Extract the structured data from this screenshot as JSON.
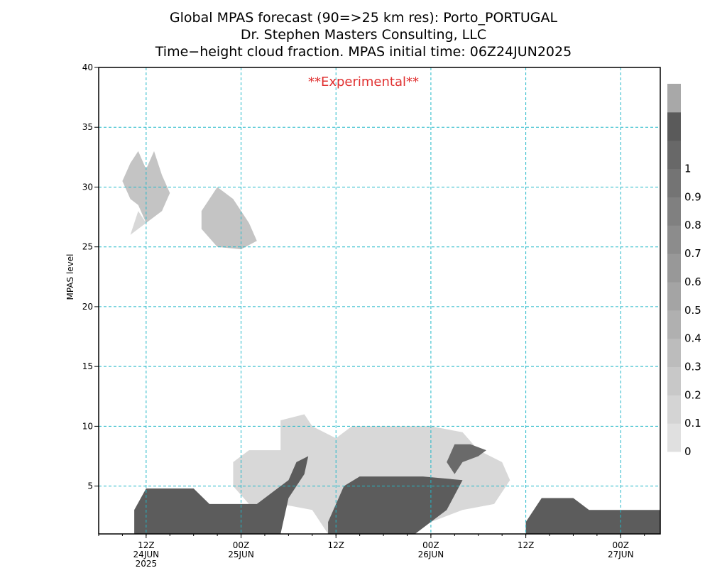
{
  "title_lines": [
    "Global MPAS forecast (90=>25 km res): Porto_PORTUGAL",
    "Dr. Stephen Masters Consulting, LLC",
    "Time−height cloud fraction.    MPAS initial time: 06Z24JUN2025"
  ],
  "watermark": "**Experimental**",
  "colors": {
    "grid": "#22b8c8",
    "watermark": "#e03030",
    "frame": "#000000"
  },
  "chart_data": {
    "type": "heatmap",
    "ylabel": "MPAS level",
    "ylim": [
      1,
      40
    ],
    "yticks": [
      5,
      10,
      15,
      20,
      25,
      30,
      35,
      40
    ],
    "x_range_hours_note": "forecast hours from 06Z24JUN2025",
    "xlim": [
      0,
      71
    ],
    "xticks": [
      {
        "hour": 6,
        "label": "12Z",
        "sub": [
          "24JUN",
          "2025"
        ]
      },
      {
        "hour": 18,
        "label": "00Z",
        "sub": [
          "25JUN"
        ]
      },
      {
        "hour": 30,
        "label": "12Z",
        "sub": []
      },
      {
        "hour": 42,
        "label": "00Z",
        "sub": [
          "26JUN"
        ]
      },
      {
        "hour": 54,
        "label": "12Z",
        "sub": []
      },
      {
        "hour": 66,
        "label": "00Z",
        "sub": [
          "27JUN"
        ]
      }
    ],
    "colorbar": {
      "labels": [
        "0",
        "0.1",
        "0.2",
        "0.3",
        "0.4",
        "0.5",
        "0.6",
        "0.7",
        "0.8",
        "0.9",
        "1"
      ],
      "colors": [
        "#e0e0e0",
        "#d4d4d4",
        "#c8c8c8",
        "#bcbcbc",
        "#b0b0b0",
        "#a4a4a4",
        "#989898",
        "#8c8c8c",
        "#808080",
        "#747474",
        "#686868",
        "#5a5a5a",
        "#a8a8a8"
      ]
    },
    "regions": [
      {
        "name": "upper cloud early",
        "level": "0.1-0.6",
        "poly": [
          [
            3,
            30.5
          ],
          [
            4,
            32
          ],
          [
            5,
            33
          ],
          [
            6,
            31.5
          ],
          [
            7,
            33
          ],
          [
            8,
            31
          ],
          [
            9,
            29.5
          ],
          [
            8,
            28
          ],
          [
            6,
            27
          ],
          [
            5,
            28.5
          ],
          [
            4,
            29
          ]
        ]
      },
      {
        "name": "upper cloud 25JUN",
        "level": "0.1-0.6",
        "poly": [
          [
            13,
            28
          ],
          [
            15,
            30
          ],
          [
            17,
            29
          ],
          [
            19,
            27
          ],
          [
            20,
            25.5
          ],
          [
            18,
            24.8
          ],
          [
            15,
            25
          ],
          [
            13,
            26.5
          ]
        ]
      },
      {
        "name": "small patch",
        "level": "0.1",
        "poly": [
          [
            4,
            26
          ],
          [
            5,
            28
          ],
          [
            6,
            27
          ]
        ]
      },
      {
        "name": "low cloud day 1",
        "level": "0.9-1",
        "poly": [
          [
            4.5,
            1
          ],
          [
            4.5,
            3
          ],
          [
            6,
            4.8
          ],
          [
            12,
            4.8
          ],
          [
            14,
            3.5
          ],
          [
            20,
            3.5
          ],
          [
            22,
            4.5
          ],
          [
            24,
            5.5
          ],
          [
            25,
            7
          ],
          [
            26.5,
            7.5
          ],
          [
            26,
            6
          ],
          [
            24,
            4
          ],
          [
            23,
            1
          ]
        ]
      },
      {
        "name": "low cloud day 2",
        "level": "0.9-1",
        "poly": [
          [
            29,
            1
          ],
          [
            29,
            2
          ],
          [
            31,
            5
          ],
          [
            33,
            5.8
          ],
          [
            41,
            5.8
          ],
          [
            46,
            5.5
          ],
          [
            44,
            3
          ],
          [
            40,
            1
          ]
        ]
      },
      {
        "name": "mid cloud day 2",
        "level": "0.1",
        "poly": [
          [
            17,
            7
          ],
          [
            19,
            8
          ],
          [
            23,
            8
          ],
          [
            23,
            10.5
          ],
          [
            26,
            11
          ],
          [
            27,
            10
          ],
          [
            30,
            9
          ],
          [
            32,
            10
          ],
          [
            42,
            10
          ],
          [
            46,
            9.5
          ],
          [
            48,
            8
          ],
          [
            51,
            7
          ],
          [
            52,
            5.5
          ],
          [
            50,
            3.5
          ],
          [
            46,
            3
          ],
          [
            42,
            2
          ],
          [
            39,
            1
          ],
          [
            34,
            1
          ],
          [
            29,
            1
          ],
          [
            27,
            3
          ],
          [
            23,
            3.5
          ],
          [
            19,
            3.5
          ],
          [
            17,
            5
          ]
        ]
      },
      {
        "name": "mid cloud day 2 core",
        "level": "0.8",
        "poly": [
          [
            44,
            7
          ],
          [
            45,
            8.5
          ],
          [
            47,
            8.5
          ],
          [
            49,
            8
          ],
          [
            48,
            7.5
          ],
          [
            46,
            7
          ],
          [
            45,
            6
          ]
        ]
      },
      {
        "name": "low cloud day 3",
        "level": "0.9-1",
        "poly": [
          [
            54,
            1
          ],
          [
            54,
            2
          ],
          [
            56,
            4
          ],
          [
            60,
            4
          ],
          [
            62,
            3
          ],
          [
            71,
            3
          ],
          [
            71,
            1
          ]
        ]
      }
    ]
  }
}
